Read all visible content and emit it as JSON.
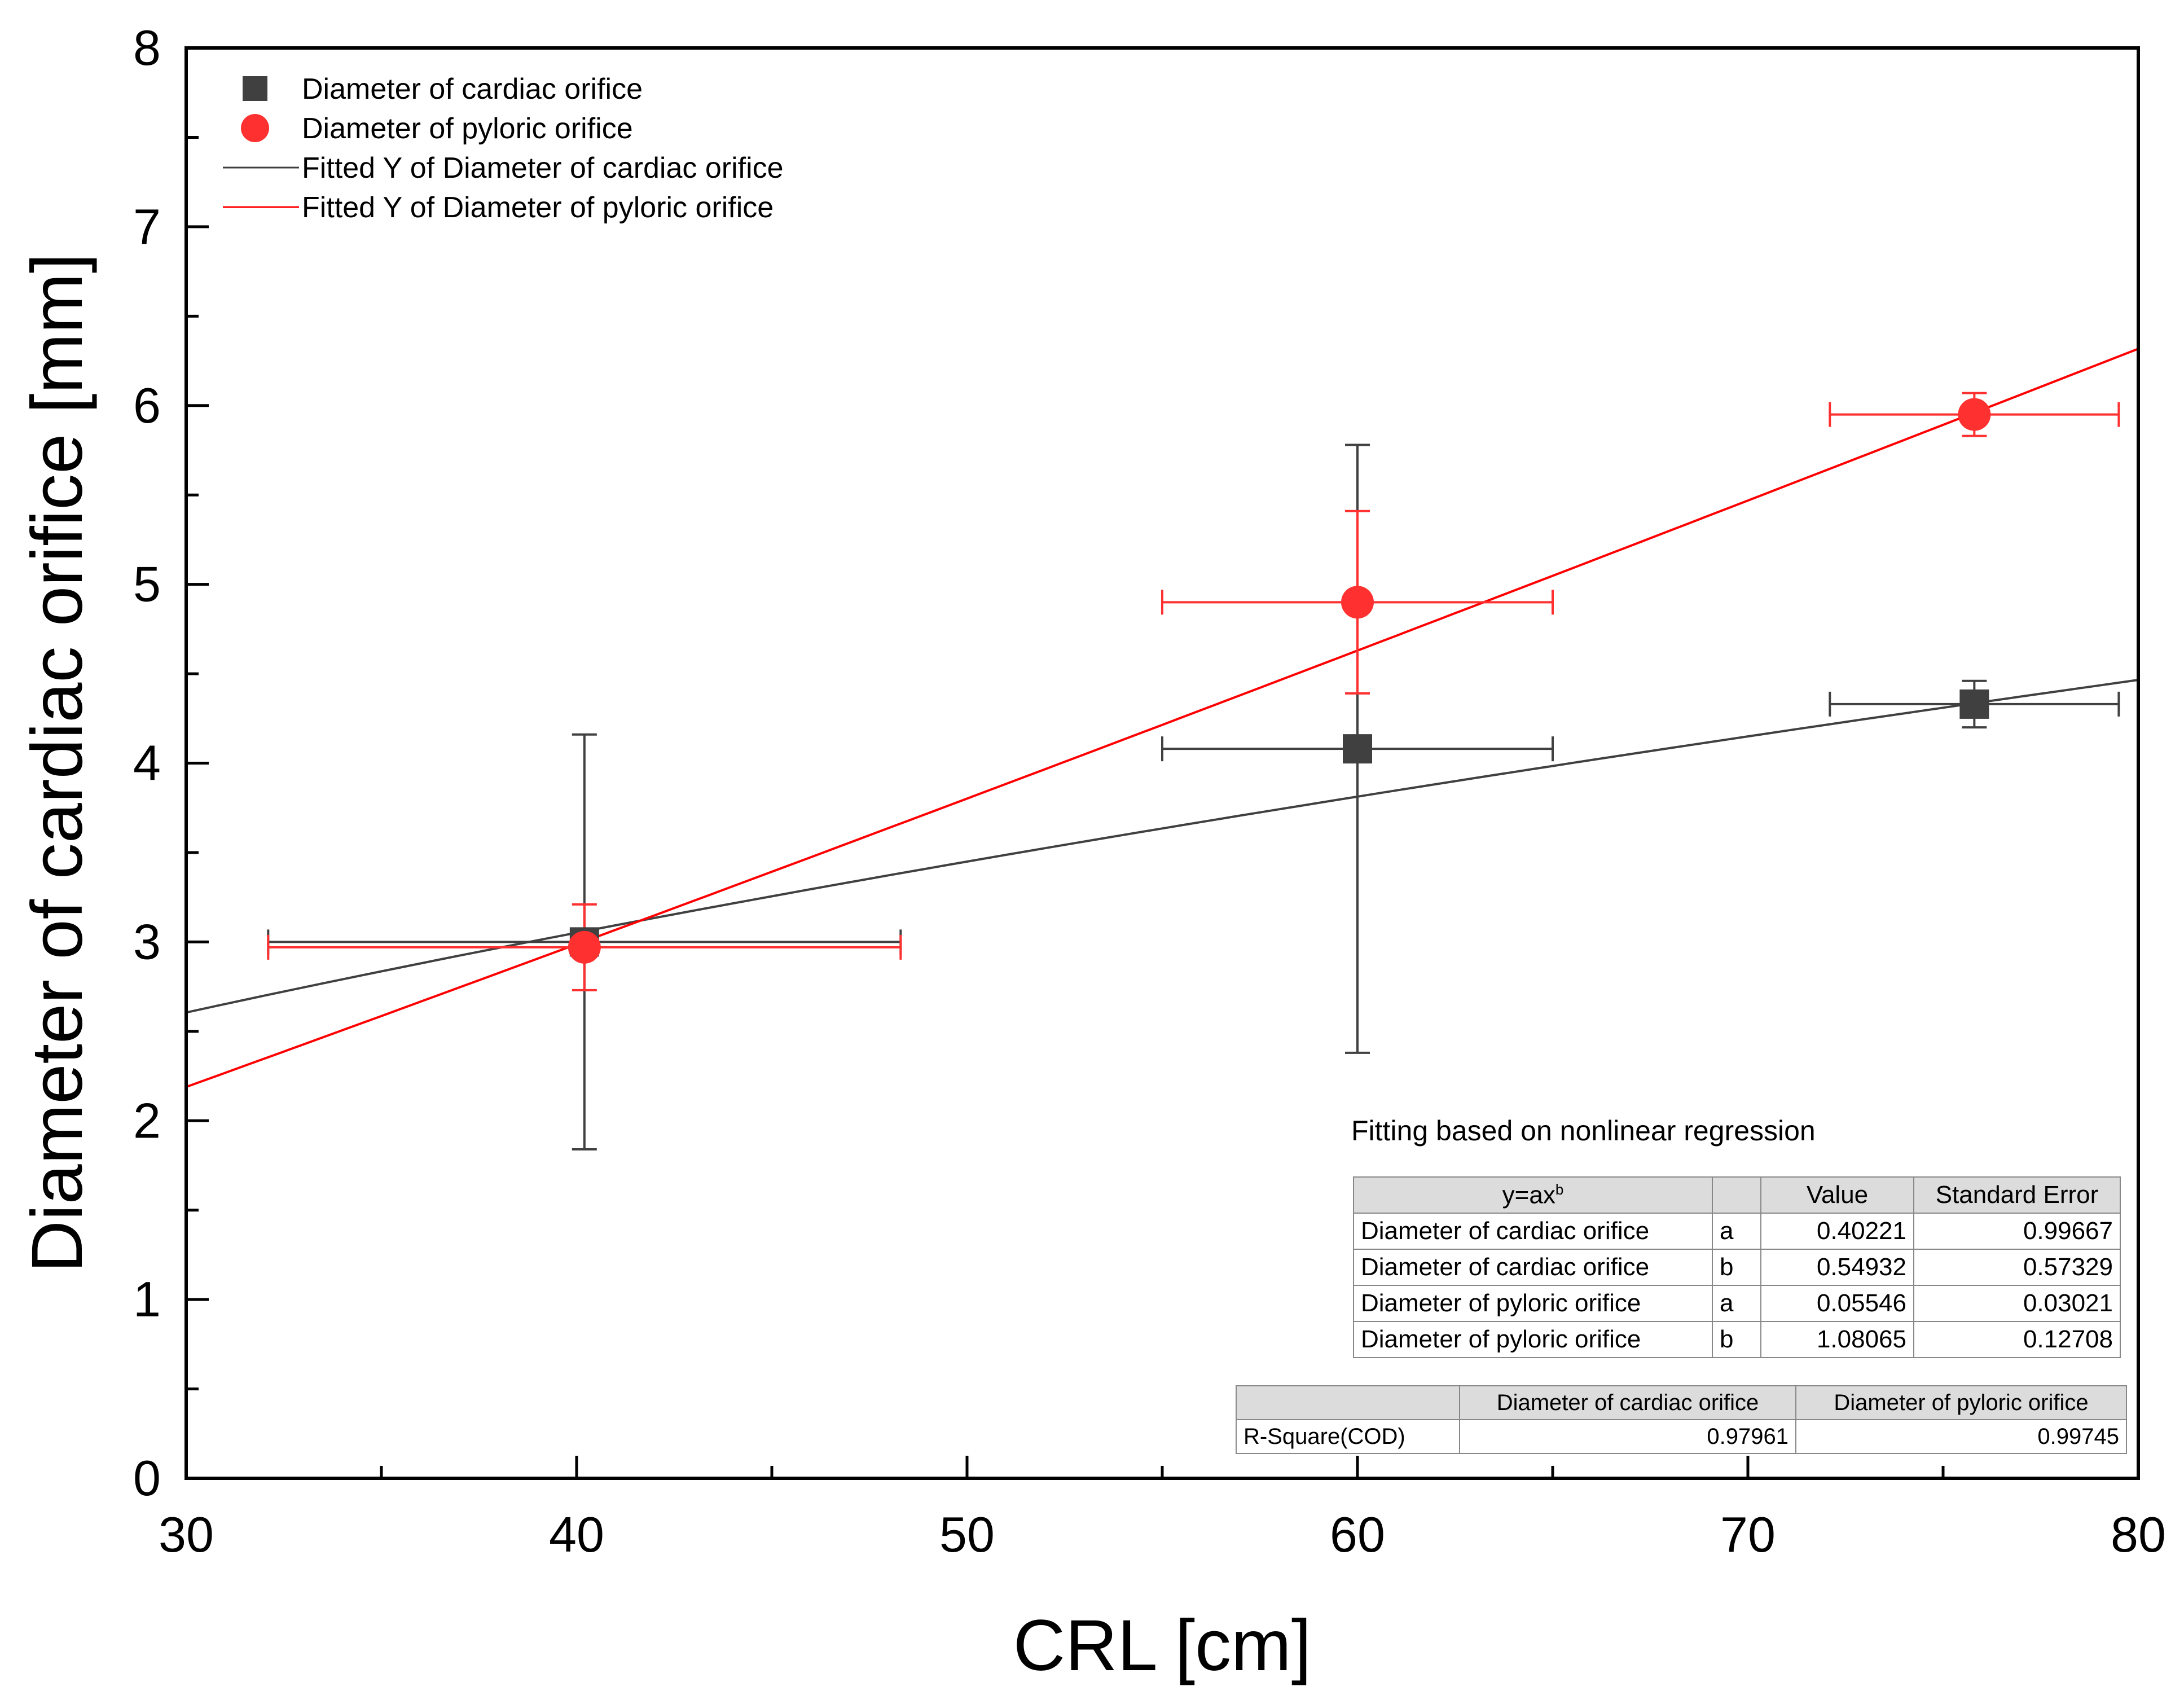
{
  "chart_data": {
    "type": "scatter",
    "title": "",
    "xlabel": "CRL [cm]",
    "ylabel": "Diameter of cardiac orifice [mm]",
    "xlim": [
      30,
      80
    ],
    "ylim": [
      0,
      8
    ],
    "xticks": [
      "30",
      "40",
      "50",
      "60",
      "70",
      "80"
    ],
    "yticks": [
      "0",
      "1",
      "2",
      "3",
      "4",
      "5",
      "6",
      "7",
      "8"
    ],
    "legend_position": "top-left",
    "series": [
      {
        "name": "Diameter of cardiac orifice",
        "marker": "square",
        "color": "#404040",
        "x": [
          40.2,
          60.0,
          75.8
        ],
        "y": [
          3.0,
          4.08,
          4.33
        ],
        "x_err": [
          [
            8.1,
            8.1
          ],
          [
            5.0,
            5.0
          ],
          [
            3.7,
            3.7
          ]
        ],
        "y_err": [
          [
            1.16,
            1.16
          ],
          [
            1.7,
            1.7
          ],
          [
            0.13,
            0.13
          ]
        ]
      },
      {
        "name": "Diameter of pyloric orifice",
        "marker": "circle",
        "color": "#ff3030",
        "x": [
          40.2,
          60.0,
          75.8
        ],
        "y": [
          2.97,
          4.9,
          5.95
        ],
        "x_err": [
          [
            8.1,
            8.1
          ],
          [
            5.0,
            5.0
          ],
          [
            3.7,
            3.7
          ]
        ],
        "y_err": [
          [
            0.24,
            0.24
          ],
          [
            0.51,
            0.51
          ],
          [
            0.12,
            0.12
          ]
        ]
      }
    ],
    "fits": [
      {
        "name": "Fitted Y of Diameter of cardiac orifice",
        "color": "#404040",
        "a": 0.40221,
        "b": 0.54932
      },
      {
        "name": "Fitted Y of Diameter of pyloric orifice",
        "color": "#ff0000",
        "a": 0.05546,
        "b": 1.08065
      }
    ]
  },
  "fit_caption": "Fitting based on nonlinear regression",
  "params_table": {
    "header": {
      "model_main": "y=ax",
      "model_sup": "b",
      "param": "",
      "value": "Value",
      "stderr": "Standard Error"
    },
    "rows": [
      {
        "name": "Diameter of cardiac orifice",
        "param": "a",
        "value": "0.40221",
        "stderr": "0.99667"
      },
      {
        "name": "Diameter of cardiac orifice",
        "param": "b",
        "value": "0.54932",
        "stderr": "0.57329"
      },
      {
        "name": "Diameter of pyloric orifice",
        "param": "a",
        "value": "0.05546",
        "stderr": "0.03021"
      },
      {
        "name": "Diameter of pyloric orifice",
        "param": "b",
        "value": "1.08065",
        "stderr": "0.12708"
      }
    ]
  },
  "rsq_table": {
    "header": {
      "corner": "",
      "col1": "Diameter of cardiac orifice",
      "col2": "Diameter of pyloric orifice"
    },
    "row_label": "R-Square(COD)",
    "col1": "0.97961",
    "col2": "0.99745"
  }
}
